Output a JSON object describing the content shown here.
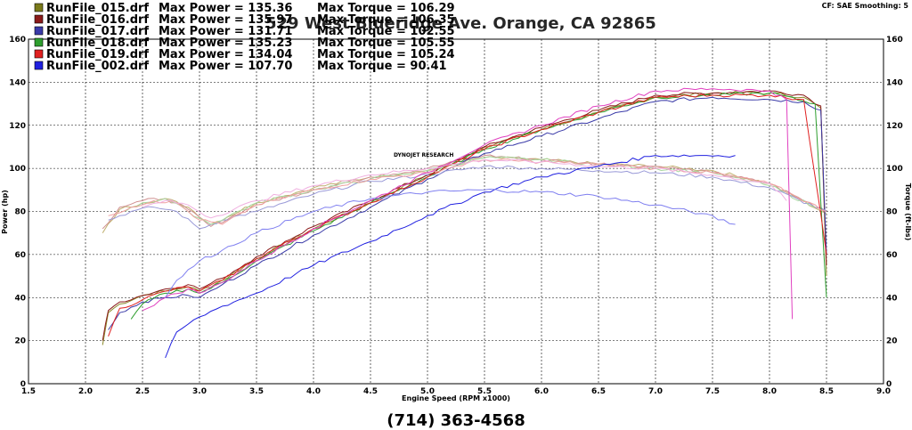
{
  "chart_data": {
    "type": "line",
    "xlabel": "Engine Speed (RPM x1000)",
    "ylabel": "Power (hp)",
    "y2label": "Torque (ft-lbs)",
    "xlim": [
      1.5,
      9.0
    ],
    "ylim": [
      0,
      160
    ],
    "y2lim": [
      0,
      160
    ],
    "x_ticks": [
      "1.5",
      "2.0",
      "2.5",
      "3.0",
      "3.5",
      "4.0",
      "4.5",
      "5.0",
      "5.5",
      "6.0",
      "6.5",
      "7.0",
      "7.5",
      "8.0",
      "8.5",
      "9.0"
    ],
    "y_ticks": [
      "0",
      "20",
      "40",
      "60",
      "80",
      "100",
      "120",
      "140",
      "160"
    ],
    "grid": true,
    "legend_position": "top-left",
    "corner_note": "CF: SAE  Smoothing: 5",
    "dyno_label": "DYNOJET RESEARCH",
    "address": "529 West Blueridge Ave.  Orange, CA 92865",
    "phone": "(714) 363-4568",
    "legend": [
      {
        "file": "RunFile_015.drf",
        "power_label": "Max Power = 135.36",
        "torque_label": "Max Torque = 106.29",
        "color": "#7a7a1a"
      },
      {
        "file": "RunFile_016.drf",
        "power_label": "Max Power = 135.97",
        "torque_label": "Max Torque = 106.35",
        "color": "#8b1a1a"
      },
      {
        "file": "RunFile_017.drf",
        "power_label": "Max Power = 131.71",
        "torque_label": "Max Torque = 102.55",
        "color": "#3a3aa8"
      },
      {
        "file": "RunFile_018.drf",
        "power_label": "Max Power = 135.23",
        "torque_label": "Max Torque = 105.55",
        "color": "#2e9e2e"
      },
      {
        "file": "RunFile_019.drf",
        "power_label": "Max Power = 134.04",
        "torque_label": "Max Torque = 105.24",
        "color": "#e02020"
      },
      {
        "file": "RunFile_002.drf",
        "power_label": "Max Power = 107.70",
        "torque_label": "Max Torque = 90.41",
        "color": "#2020e0"
      }
    ],
    "series": [
      {
        "run": "RunFile_015.drf",
        "kind": "power",
        "color": "#8a8a2a",
        "x": [
          2.15,
          2.2,
          2.3,
          2.5,
          2.7,
          2.9,
          3.0,
          3.2,
          3.5,
          4.0,
          4.5,
          5.0,
          5.5,
          6.0,
          6.5,
          7.0,
          7.5,
          8.0,
          8.3,
          8.45,
          8.5
        ],
        "y": [
          18,
          33,
          37,
          41,
          43,
          45,
          43,
          48,
          58,
          72,
          84,
          97,
          110,
          118,
          126,
          133,
          135,
          135,
          133,
          128,
          50
        ]
      },
      {
        "run": "RunFile_015.drf",
        "kind": "torque",
        "color": "#c0b070",
        "x": [
          2.15,
          2.3,
          2.5,
          2.7,
          2.9,
          3.1,
          3.5,
          4.0,
          4.5,
          5.0,
          5.5,
          6.0,
          6.5,
          7.0,
          7.5,
          8.0,
          8.5
        ],
        "y": [
          70,
          81,
          84,
          86,
          82,
          74,
          84,
          91,
          96,
          99,
          105,
          104,
          102,
          101,
          99,
          93,
          79
        ]
      },
      {
        "run": "RunFile_016.drf",
        "kind": "power",
        "color": "#8b1a1a",
        "x": [
          2.15,
          2.2,
          2.3,
          2.5,
          2.7,
          2.9,
          3.0,
          3.2,
          3.5,
          4.0,
          4.5,
          5.0,
          5.5,
          6.0,
          6.5,
          7.0,
          7.5,
          8.0,
          8.3,
          8.45,
          8.5
        ],
        "y": [
          20,
          34,
          38,
          41,
          44,
          46,
          44,
          49,
          59,
          73,
          85,
          97,
          110,
          119,
          127,
          134,
          135,
          136,
          134,
          129,
          55
        ]
      },
      {
        "run": "RunFile_016.drf",
        "kind": "torque",
        "color": "#d09090",
        "x": [
          2.15,
          2.3,
          2.5,
          2.7,
          2.9,
          3.1,
          3.5,
          4.0,
          4.5,
          5.0,
          5.5,
          6.0,
          6.5,
          7.0,
          7.5,
          8.0,
          8.5
        ],
        "y": [
          72,
          82,
          85,
          86,
          81,
          73,
          83,
          90,
          96,
          100,
          106,
          104,
          102,
          101,
          98,
          93,
          80
        ]
      },
      {
        "run": "RunFile_017.drf",
        "kind": "power",
        "color": "#3a3aa8",
        "x": [
          2.2,
          2.3,
          2.5,
          2.7,
          2.9,
          3.0,
          3.2,
          3.5,
          4.0,
          4.5,
          5.0,
          5.5,
          6.0,
          6.5,
          7.0,
          7.5,
          8.0,
          8.3,
          8.45,
          8.5
        ],
        "y": [
          25,
          33,
          38,
          40,
          41,
          40,
          46,
          55,
          69,
          82,
          95,
          107,
          115,
          123,
          131,
          133,
          132,
          131,
          127,
          60
        ]
      },
      {
        "run": "RunFile_017.drf",
        "kind": "torque",
        "color": "#9a9ad8",
        "x": [
          2.2,
          2.4,
          2.6,
          2.8,
          3.0,
          3.2,
          3.5,
          4.0,
          4.5,
          5.0,
          5.5,
          6.0,
          6.5,
          7.0,
          7.5,
          8.0,
          8.5
        ],
        "y": [
          76,
          80,
          82,
          80,
          72,
          76,
          80,
          88,
          94,
          97,
          101,
          100,
          99,
          98,
          96,
          91,
          80
        ]
      },
      {
        "run": "RunFile_018.drf",
        "kind": "power",
        "color": "#2e9e2e",
        "x": [
          2.4,
          2.5,
          2.7,
          2.9,
          3.0,
          3.2,
          3.5,
          4.0,
          4.5,
          5.0,
          5.5,
          6.0,
          6.5,
          7.0,
          7.5,
          8.0,
          8.4,
          8.5
        ],
        "y": [
          30,
          37,
          42,
          44,
          42,
          47,
          57,
          71,
          84,
          96,
          109,
          118,
          126,
          133,
          134,
          135,
          130,
          40
        ]
      },
      {
        "run": "RunFile_018.drf",
        "kind": "torque",
        "color": "#a8d8a0",
        "x": [
          2.35,
          2.5,
          2.7,
          2.9,
          3.1,
          3.5,
          4.0,
          4.5,
          5.0,
          5.5,
          6.0,
          6.5,
          7.0,
          7.5,
          8.0,
          8.4
        ],
        "y": [
          80,
          84,
          86,
          80,
          74,
          84,
          90,
          95,
          99,
          105,
          104,
          102,
          100,
          98,
          92,
          82
        ]
      },
      {
        "run": "RunFile_019.drf",
        "kind": "power",
        "color": "#e02020",
        "x": [
          2.2,
          2.3,
          2.5,
          2.7,
          2.9,
          3.0,
          3.2,
          3.5,
          4.0,
          4.5,
          5.0,
          5.5,
          6.0,
          6.5,
          7.0,
          7.5,
          8.0,
          8.3,
          8.5
        ],
        "y": [
          22,
          35,
          39,
          43,
          45,
          43,
          48,
          58,
          72,
          84,
          96,
          109,
          118,
          126,
          133,
          134,
          134,
          132,
          60
        ]
      },
      {
        "run": "RunFile_019.drf",
        "kind": "torque",
        "color": "#f0a0a0",
        "x": [
          2.2,
          2.4,
          2.6,
          2.8,
          3.0,
          3.2,
          3.5,
          4.0,
          4.5,
          5.0,
          5.5,
          6.0,
          6.5,
          7.0,
          7.5,
          8.0,
          8.5
        ],
        "y": [
          78,
          82,
          85,
          84,
          76,
          74,
          83,
          90,
          95,
          98,
          104,
          103,
          102,
          100,
          98,
          93,
          80
        ]
      },
      {
        "run": "RunFile_pink",
        "kind": "power",
        "color": "#e040c0",
        "x": [
          2.5,
          2.7,
          2.9,
          3.0,
          3.2,
          3.5,
          4.0,
          4.5,
          5.0,
          5.5,
          6.0,
          6.5,
          7.0,
          7.5,
          8.0,
          8.15,
          8.2
        ],
        "y": [
          34,
          40,
          44,
          42,
          47,
          57,
          72,
          85,
          98,
          111,
          120,
          129,
          136,
          137,
          136,
          132,
          30
        ]
      },
      {
        "run": "RunFile_pink",
        "kind": "torque",
        "color": "#f0b0e0",
        "x": [
          2.5,
          2.7,
          2.9,
          3.1,
          3.5,
          4.0,
          4.5,
          5.0,
          5.5,
          6.0,
          6.5,
          7.0,
          7.5,
          8.0,
          8.15
        ],
        "y": [
          82,
          85,
          83,
          77,
          85,
          92,
          97,
          100,
          104,
          103,
          101,
          100,
          97,
          93,
          85
        ]
      },
      {
        "run": "RunFile_002.drf",
        "kind": "power",
        "color": "#2020e0",
        "x": [
          2.7,
          2.8,
          3.0,
          3.2,
          3.5,
          4.0,
          4.5,
          5.0,
          5.5,
          6.0,
          6.5,
          7.0,
          7.4,
          7.7
        ],
        "y": [
          12,
          24,
          31,
          36,
          42,
          55,
          66,
          78,
          89,
          96,
          101,
          106,
          106,
          106
        ]
      },
      {
        "run": "RunFile_002.drf",
        "kind": "torque",
        "color": "#8080f0",
        "x": [
          2.7,
          2.8,
          3.0,
          3.2,
          3.5,
          4.0,
          4.5,
          5.0,
          5.5,
          6.0,
          6.5,
          7.0,
          7.4,
          7.7
        ],
        "y": [
          40,
          48,
          57,
          62,
          70,
          80,
          86,
          89,
          90,
          89,
          87,
          83,
          79,
          74
        ]
      }
    ]
  }
}
